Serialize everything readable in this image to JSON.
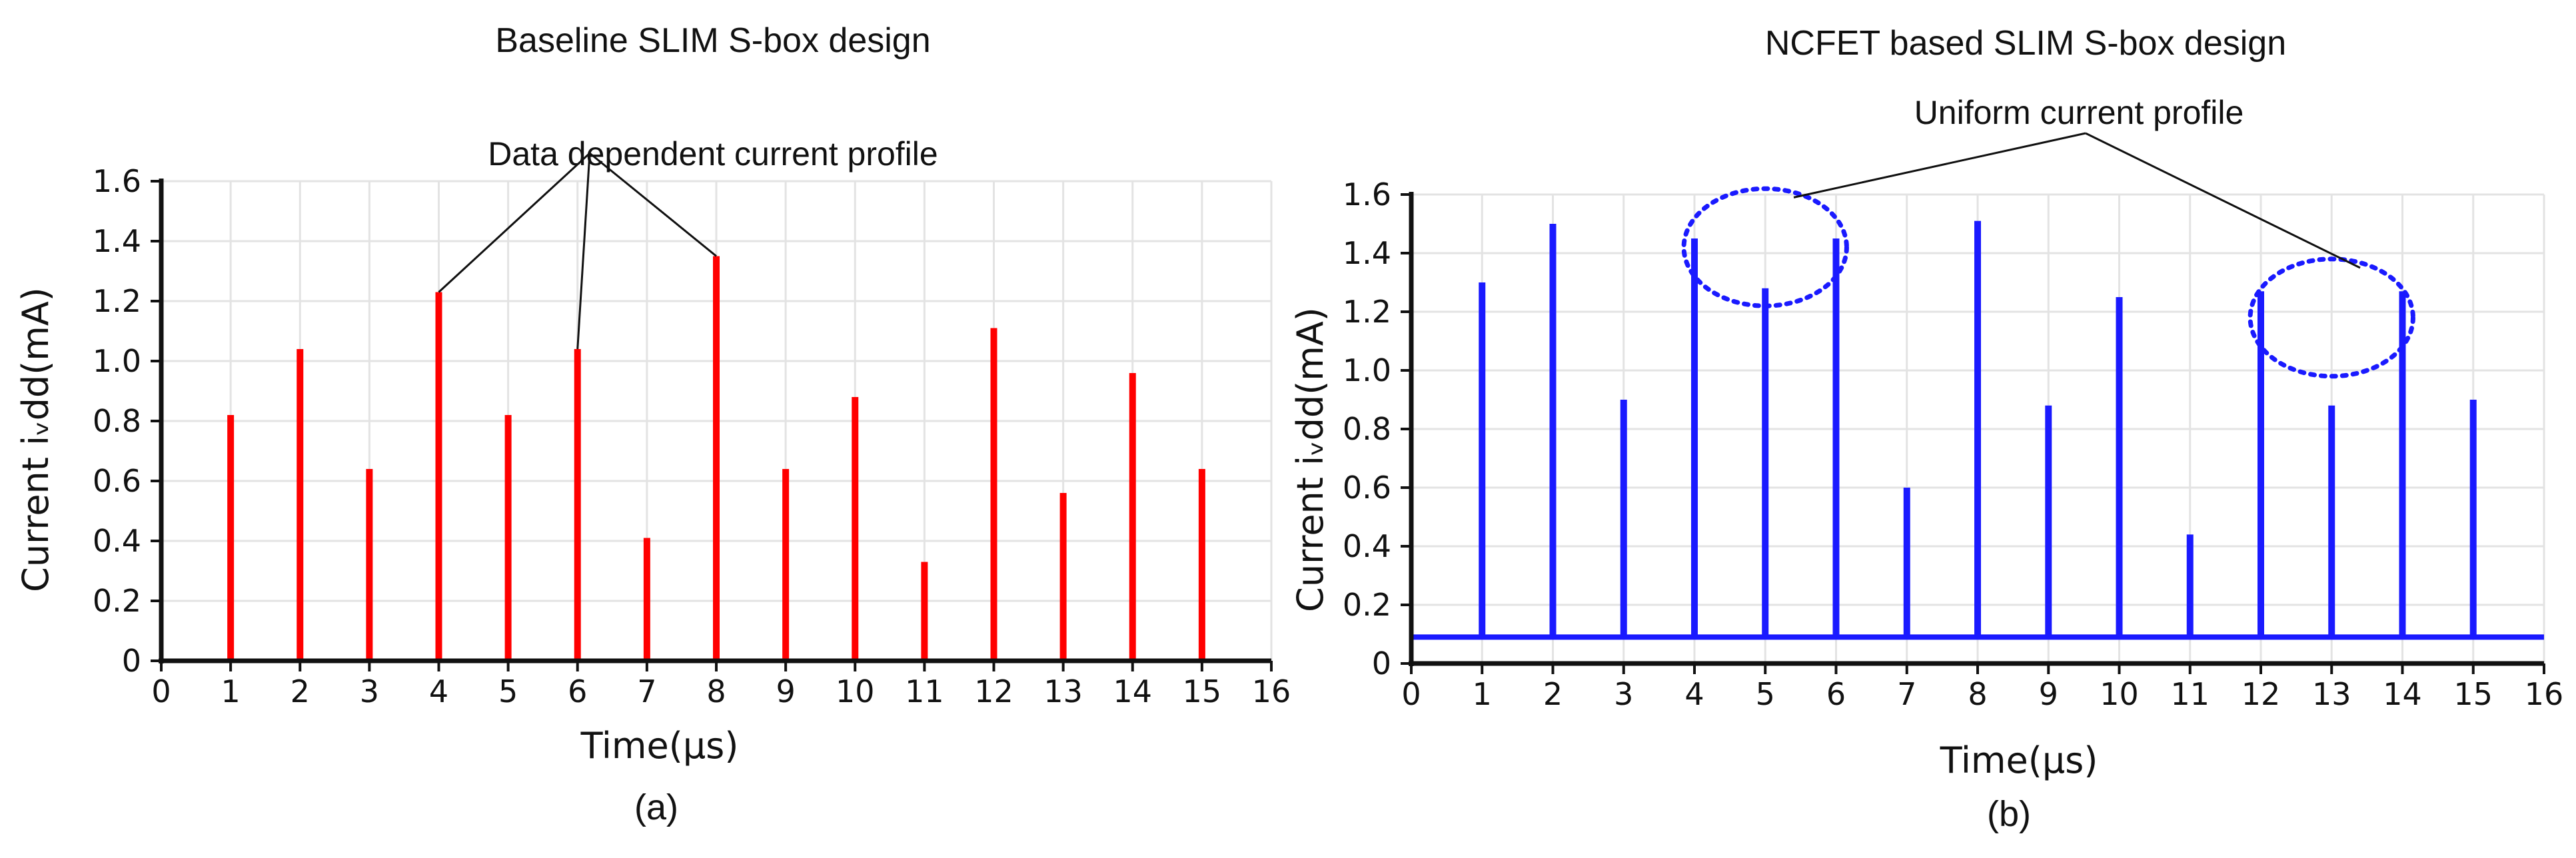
{
  "chart_data": [
    {
      "type": "line",
      "panel": "(a)",
      "title": "Baseline SLIM S-box design",
      "annotation": "Data dependent current profile",
      "xlabel": "Time(μs)",
      "ylabel": "Current iᵥdd(mA)",
      "xlim": [
        0,
        16
      ],
      "ylim": [
        0,
        1.6
      ],
      "xticks": [
        "0",
        "1",
        "2",
        "3",
        "4",
        "5",
        "6",
        "7",
        "8",
        "9",
        "10",
        "11",
        "12",
        "13",
        "14",
        "15",
        "16"
      ],
      "yticks": [
        "0",
        "0.2",
        "0.4",
        "0.6",
        "0.8",
        "1.0",
        "1.2",
        "1.4",
        "1.6"
      ],
      "grid": true,
      "color": "#ff0000",
      "baseline": 0,
      "series": [
        {
          "x": [
            1,
            2,
            3,
            4,
            5,
            6,
            7,
            8,
            9,
            10,
            11,
            12,
            13,
            14,
            15
          ],
          "values": [
            0.82,
            1.04,
            0.64,
            1.23,
            0.82,
            1.04,
            0.41,
            1.35,
            0.64,
            0.88,
            0.33,
            1.11,
            0.56,
            0.96,
            0.64
          ]
        }
      ],
      "annotation_points": [
        4,
        6,
        8
      ]
    },
    {
      "type": "line",
      "panel": "(b)",
      "title": "NCFET based SLIM S-box design",
      "annotation": "Uniform current profile",
      "xlabel": "Time(μs)",
      "ylabel": "Current iᵥdd(mA)",
      "xlim": [
        0,
        16
      ],
      "ylim": [
        0,
        1.6
      ],
      "xticks": [
        "0",
        "1",
        "2",
        "3",
        "4",
        "5",
        "6",
        "7",
        "8",
        "9",
        "10",
        "11",
        "12",
        "13",
        "14",
        "15",
        "16"
      ],
      "yticks": [
        "0",
        "0.2",
        "0.4",
        "0.6",
        "0.8",
        "1.0",
        "1.2",
        "1.4",
        "1.6"
      ],
      "grid": true,
      "color": "#1a1aff",
      "baseline": 0.09,
      "series": [
        {
          "x": [
            1,
            2,
            3,
            4,
            5,
            6,
            7,
            8,
            9,
            10,
            11,
            12,
            13,
            14,
            15
          ],
          "values": [
            1.3,
            1.5,
            0.9,
            1.45,
            1.28,
            1.45,
            0.6,
            1.51,
            0.88,
            1.25,
            0.44,
            1.27,
            0.88,
            1.27,
            0.9
          ]
        }
      ],
      "highlight_regions": [
        {
          "x_center": 5,
          "y_center": 1.42
        },
        {
          "x_center": 13,
          "y_center": 1.18
        }
      ]
    }
  ]
}
